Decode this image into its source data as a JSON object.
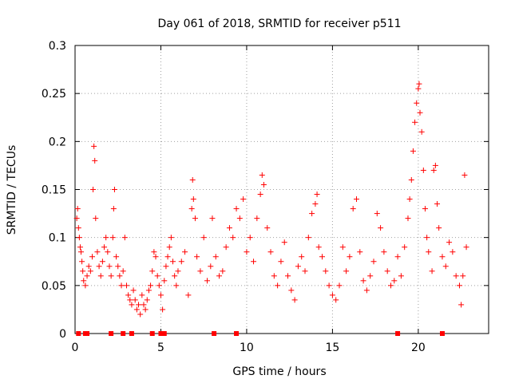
{
  "chart_data": {
    "type": "scatter",
    "title": "Day 061 of 2018, SRMTID for receiver p511",
    "xlabel": "GPS time / hours",
    "ylabel": "SRMTID / TECUs",
    "xlim": [
      0,
      24.1
    ],
    "ylim": [
      0,
      0.3
    ],
    "xticks": [
      0,
      5,
      10,
      15,
      20
    ],
    "xtick_labels": [
      "0",
      "5",
      "10",
      "15",
      "20"
    ],
    "yticks": [
      0,
      0.05,
      0.1,
      0.15,
      0.2,
      0.25,
      0.3
    ],
    "ytick_labels": [
      "0",
      "0.05",
      "0.1",
      "0.15",
      "0.2",
      "0.25",
      "0.3"
    ],
    "grid": true,
    "marker": "plus",
    "color": "#ff0000",
    "series": [
      {
        "name": "SRMTID",
        "points": [
          [
            0.1,
            0.12
          ],
          [
            0.15,
            0.13
          ],
          [
            0.2,
            0.11
          ],
          [
            0.25,
            0.1
          ],
          [
            0.3,
            0.09
          ],
          [
            0.35,
            0.085
          ],
          [
            0.4,
            0.075
          ],
          [
            0.45,
            0.065
          ],
          [
            0.5,
            0.055
          ],
          [
            0.6,
            0.05
          ],
          [
            0.7,
            0.06
          ],
          [
            0.8,
            0.07
          ],
          [
            0.9,
            0.065
          ],
          [
            1.0,
            0.08
          ],
          [
            1.05,
            0.15
          ],
          [
            1.1,
            0.195
          ],
          [
            1.15,
            0.18
          ],
          [
            1.2,
            0.12
          ],
          [
            1.3,
            0.085
          ],
          [
            1.4,
            0.07
          ],
          [
            1.5,
            0.06
          ],
          [
            1.6,
            0.075
          ],
          [
            1.7,
            0.09
          ],
          [
            1.8,
            0.1
          ],
          [
            1.9,
            0.085
          ],
          [
            2.0,
            0.07
          ],
          [
            2.1,
            0.06
          ],
          [
            2.2,
            0.1
          ],
          [
            2.25,
            0.13
          ],
          [
            2.3,
            0.15
          ],
          [
            2.4,
            0.08
          ],
          [
            2.5,
            0.07
          ],
          [
            2.6,
            0.06
          ],
          [
            2.7,
            0.05
          ],
          [
            2.8,
            0.065
          ],
          [
            2.9,
            0.1
          ],
          [
            3.0,
            0.05
          ],
          [
            3.1,
            0.04
          ],
          [
            3.2,
            0.035
          ],
          [
            3.3,
            0.03
          ],
          [
            3.4,
            0.045
          ],
          [
            3.5,
            0.035
          ],
          [
            3.6,
            0.025
          ],
          [
            3.7,
            0.03
          ],
          [
            3.8,
            0.02
          ],
          [
            3.9,
            0.04
          ],
          [
            4.0,
            0.03
          ],
          [
            4.1,
            0.025
          ],
          [
            4.2,
            0.035
          ],
          [
            4.3,
            0.045
          ],
          [
            4.4,
            0.05
          ],
          [
            4.5,
            0.065
          ],
          [
            4.6,
            0.085
          ],
          [
            4.7,
            0.08
          ],
          [
            4.8,
            0.06
          ],
          [
            4.9,
            0.05
          ],
          [
            5.0,
            0.04
          ],
          [
            5.1,
            0.025
          ],
          [
            5.2,
            0.055
          ],
          [
            5.3,
            0.07
          ],
          [
            5.4,
            0.08
          ],
          [
            5.5,
            0.09
          ],
          [
            5.6,
            0.1
          ],
          [
            5.7,
            0.075
          ],
          [
            5.8,
            0.06
          ],
          [
            5.9,
            0.05
          ],
          [
            6.0,
            0.065
          ],
          [
            6.2,
            0.075
          ],
          [
            6.4,
            0.085
          ],
          [
            6.6,
            0.04
          ],
          [
            6.8,
            0.13
          ],
          [
            6.85,
            0.16
          ],
          [
            6.9,
            0.14
          ],
          [
            7.0,
            0.12
          ],
          [
            7.1,
            0.08
          ],
          [
            7.3,
            0.065
          ],
          [
            7.5,
            0.1
          ],
          [
            7.7,
            0.055
          ],
          [
            7.9,
            0.07
          ],
          [
            8.0,
            0.12
          ],
          [
            8.2,
            0.08
          ],
          [
            8.4,
            0.06
          ],
          [
            8.6,
            0.065
          ],
          [
            8.8,
            0.09
          ],
          [
            9.0,
            0.11
          ],
          [
            9.2,
            0.1
          ],
          [
            9.4,
            0.13
          ],
          [
            9.6,
            0.12
          ],
          [
            9.8,
            0.14
          ],
          [
            10.0,
            0.085
          ],
          [
            10.2,
            0.1
          ],
          [
            10.4,
            0.075
          ],
          [
            10.6,
            0.12
          ],
          [
            10.8,
            0.145
          ],
          [
            10.9,
            0.165
          ],
          [
            11.0,
            0.155
          ],
          [
            11.2,
            0.11
          ],
          [
            11.4,
            0.085
          ],
          [
            11.6,
            0.06
          ],
          [
            11.8,
            0.05
          ],
          [
            12.0,
            0.075
          ],
          [
            12.2,
            0.095
          ],
          [
            12.4,
            0.06
          ],
          [
            12.6,
            0.045
          ],
          [
            12.8,
            0.035
          ],
          [
            13.0,
            0.07
          ],
          [
            13.2,
            0.08
          ],
          [
            13.4,
            0.065
          ],
          [
            13.6,
            0.1
          ],
          [
            13.8,
            0.125
          ],
          [
            14.0,
            0.135
          ],
          [
            14.1,
            0.145
          ],
          [
            14.2,
            0.09
          ],
          [
            14.4,
            0.08
          ],
          [
            14.6,
            0.065
          ],
          [
            14.8,
            0.05
          ],
          [
            15.0,
            0.04
          ],
          [
            15.2,
            0.035
          ],
          [
            15.4,
            0.05
          ],
          [
            15.6,
            0.09
          ],
          [
            15.8,
            0.065
          ],
          [
            16.0,
            0.08
          ],
          [
            16.2,
            0.13
          ],
          [
            16.4,
            0.14
          ],
          [
            16.6,
            0.085
          ],
          [
            16.8,
            0.055
          ],
          [
            17.0,
            0.045
          ],
          [
            17.2,
            0.06
          ],
          [
            17.4,
            0.075
          ],
          [
            17.6,
            0.125
          ],
          [
            17.8,
            0.11
          ],
          [
            18.0,
            0.085
          ],
          [
            18.2,
            0.065
          ],
          [
            18.4,
            0.05
          ],
          [
            18.6,
            0.055
          ],
          [
            18.8,
            0.08
          ],
          [
            19.0,
            0.06
          ],
          [
            19.2,
            0.09
          ],
          [
            19.4,
            0.12
          ],
          [
            19.5,
            0.14
          ],
          [
            19.6,
            0.16
          ],
          [
            19.7,
            0.19
          ],
          [
            19.8,
            0.22
          ],
          [
            19.9,
            0.24
          ],
          [
            20.0,
            0.255
          ],
          [
            20.05,
            0.26
          ],
          [
            20.1,
            0.23
          ],
          [
            20.2,
            0.21
          ],
          [
            20.3,
            0.17
          ],
          [
            20.4,
            0.13
          ],
          [
            20.5,
            0.1
          ],
          [
            20.6,
            0.085
          ],
          [
            20.8,
            0.065
          ],
          [
            20.9,
            0.17
          ],
          [
            21.0,
            0.175
          ],
          [
            21.1,
            0.135
          ],
          [
            21.2,
            0.11
          ],
          [
            21.4,
            0.08
          ],
          [
            21.6,
            0.07
          ],
          [
            21.8,
            0.095
          ],
          [
            22.0,
            0.085
          ],
          [
            22.2,
            0.06
          ],
          [
            22.4,
            0.05
          ],
          [
            22.5,
            0.03
          ],
          [
            22.6,
            0.06
          ],
          [
            22.7,
            0.165
          ],
          [
            22.8,
            0.09
          ]
        ]
      }
    ],
    "zero_markers": [
      0.2,
      0.6,
      0.7,
      2.1,
      2.8,
      3.3,
      4.5,
      5.0,
      5.2,
      8.1,
      9.4,
      18.8,
      21.4
    ]
  }
}
